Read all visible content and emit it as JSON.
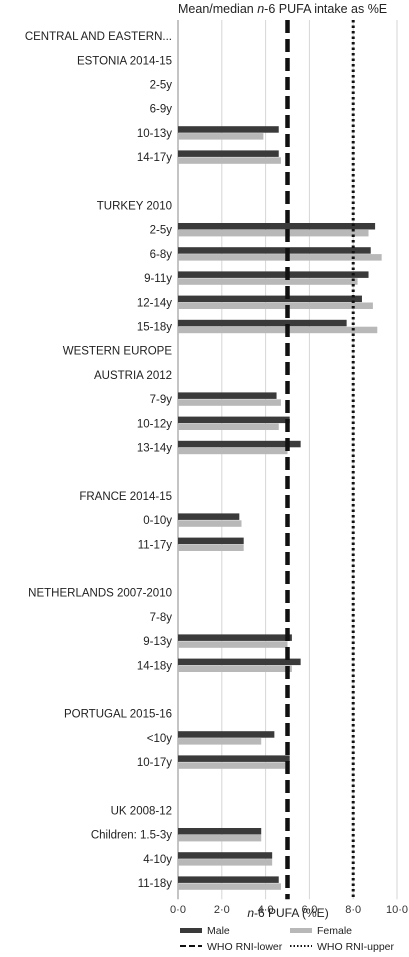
{
  "chart_data": {
    "type": "bar",
    "orientation": "horizontal",
    "title_parts": [
      "Mean/median ",
      "n",
      "-6 PUFA intake as %E"
    ],
    "xlabel_parts": [
      "n",
      "-6 PUFA (%E)"
    ],
    "xlim": [
      0,
      10
    ],
    "xticks": [
      "0·0",
      "2·0",
      "4·0",
      "6·0",
      "8·0",
      "10·0"
    ],
    "grid": true,
    "legend_placement": "bottom",
    "series": [
      {
        "name": "Male",
        "color": "#3a3a3a"
      },
      {
        "name": "Female",
        "color": "#b8b8b8"
      }
    ],
    "reference_lines": [
      {
        "name": "WHO RNI-lower",
        "value": 5.0,
        "style": "dashed"
      },
      {
        "name": "WHO RNI-upper",
        "value": 8.0,
        "style": "dotted"
      }
    ],
    "rows": [
      {
        "label": "CENTRAL AND EASTERN...",
        "kind": "header"
      },
      {
        "label": "ESTONIA 2014-15",
        "kind": "header"
      },
      {
        "label": "2-5y",
        "male": null,
        "female": null
      },
      {
        "label": "6-9y",
        "male": null,
        "female": null
      },
      {
        "label": "10-13y",
        "male": 4.6,
        "female": 3.9
      },
      {
        "label": "14-17y",
        "male": 4.6,
        "female": 4.7
      },
      {
        "label": "",
        "kind": "gap"
      },
      {
        "label": "TURKEY 2010",
        "kind": "header"
      },
      {
        "label": "2-5y",
        "male": 9.0,
        "female": 8.7
      },
      {
        "label": "6-8y",
        "male": 8.8,
        "female": 9.3
      },
      {
        "label": "9-11y",
        "male": 8.7,
        "female": 8.2
      },
      {
        "label": "12-14y",
        "male": 8.4,
        "female": 8.9
      },
      {
        "label": "15-18y",
        "male": 7.7,
        "female": 9.1
      },
      {
        "label": "WESTERN EUROPE",
        "kind": "header"
      },
      {
        "label": "AUSTRIA 2012",
        "kind": "header"
      },
      {
        "label": "7-9y",
        "male": 4.5,
        "female": 4.7
      },
      {
        "label": "10-12y",
        "male": 5.1,
        "female": 4.6
      },
      {
        "label": "13-14y",
        "male": 5.6,
        "female": 5.0
      },
      {
        "label": "",
        "kind": "gap"
      },
      {
        "label": "FRANCE 2014-15",
        "kind": "header"
      },
      {
        "label": "0-10y",
        "male": 2.8,
        "female": 2.9
      },
      {
        "label": "11-17y",
        "male": 3.0,
        "female": 3.0
      },
      {
        "label": "",
        "kind": "gap"
      },
      {
        "label": "NETHERLANDS 2007-2010",
        "kind": "header"
      },
      {
        "label": "7-8y",
        "male": null,
        "female": null
      },
      {
        "label": "9-13y",
        "male": 5.2,
        "female": 5.0
      },
      {
        "label": "14-18y",
        "male": 5.6,
        "female": 5.2
      },
      {
        "label": "",
        "kind": "gap"
      },
      {
        "label": "PORTUGAL 2015-16",
        "kind": "header"
      },
      {
        "label": "<10y",
        "male": 4.4,
        "female": 3.8
      },
      {
        "label": "10-17y",
        "male": 5.1,
        "female": 4.9
      },
      {
        "label": "",
        "kind": "gap"
      },
      {
        "label": "UK 2008-12",
        "kind": "header"
      },
      {
        "label": "Children: 1.5-3y",
        "male": 3.8,
        "female": 3.8
      },
      {
        "label": "4-10y",
        "male": 4.3,
        "female": 4.3
      },
      {
        "label": "11-18y",
        "male": 4.6,
        "female": 4.7
      }
    ]
  }
}
